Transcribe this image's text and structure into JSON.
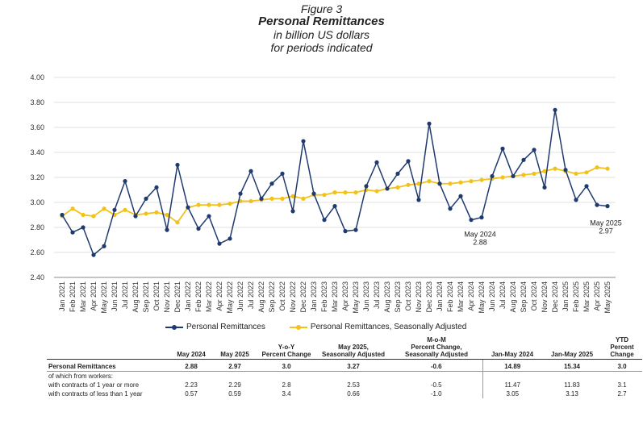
{
  "titles": {
    "figure": "Figure 3",
    "title": "Personal Remittances",
    "subtitle1": "in billion US dollars",
    "subtitle2": "for periods indicated"
  },
  "colors": {
    "series1": "#1f3a6e",
    "series2": "#f2c21b"
  },
  "chart_data": {
    "type": "line",
    "ylim": [
      2.4,
      4.0
    ],
    "yticks": [
      "4.00",
      "3.80",
      "3.60",
      "3.40",
      "3.20",
      "3.00",
      "2.80",
      "2.60",
      "2.40"
    ],
    "grid": true,
    "legend_position": "bottom",
    "categories": [
      "Jan 2021",
      "Feb 2021",
      "Mar 2021",
      "Apr 2021",
      "May 2021",
      "Jun 2021",
      "Jul 2021",
      "Aug 2021",
      "Sep 2021",
      "Oct 2021",
      "Nov 2021",
      "Dec 2021",
      "Jan 2022",
      "Feb 2022",
      "Mar 2022",
      "Apr 2022",
      "May 2022",
      "Jun 2022",
      "Jul 2022",
      "Aug 2022",
      "Sep 2022",
      "Oct 2022",
      "Nov 2022",
      "Dec 2022",
      "Jan 2023",
      "Feb 2023",
      "Mar 2023",
      "Apr 2023",
      "May 2023",
      "Jun 2023",
      "Jul 2023",
      "Aug 2023",
      "Sep 2023",
      "Oct 2023",
      "Nov 2023",
      "Dec 2023",
      "Jan 2024",
      "Feb 2024",
      "Mar 2024",
      "Apr 2024",
      "May 2024",
      "Jun 2024",
      "Jul 2024",
      "Aug 2024",
      "Sep 2024",
      "Oct 2024",
      "Nov 2024",
      "Dec 2024",
      "Jan 2025",
      "Feb 2025",
      "Mar 2025",
      "Apr 2025",
      "May 2025"
    ],
    "series": [
      {
        "name": "Personal Remittances",
        "values": [
          2.9,
          2.76,
          2.8,
          2.58,
          2.65,
          2.94,
          3.17,
          2.89,
          3.03,
          3.12,
          2.78,
          3.3,
          2.96,
          2.79,
          2.89,
          2.67,
          2.71,
          3.07,
          3.25,
          3.03,
          3.15,
          3.23,
          2.93,
          3.49,
          3.07,
          2.86,
          2.97,
          2.77,
          2.78,
          3.13,
          3.32,
          3.11,
          3.23,
          3.33,
          3.02,
          3.63,
          3.15,
          2.95,
          3.05,
          2.86,
          2.88,
          3.21,
          3.43,
          3.21,
          3.34,
          3.42,
          3.12,
          3.74,
          3.26,
          3.02,
          3.13,
          2.98,
          2.97
        ]
      },
      {
        "name": "Personal Remittances, Seasonally Adjusted",
        "values": [
          2.89,
          2.95,
          2.9,
          2.89,
          2.95,
          2.9,
          2.94,
          2.9,
          2.91,
          2.92,
          2.9,
          2.84,
          2.96,
          2.98,
          2.98,
          2.98,
          2.99,
          3.01,
          3.01,
          3.02,
          3.03,
          3.03,
          3.05,
          3.03,
          3.06,
          3.06,
          3.08,
          3.08,
          3.08,
          3.1,
          3.09,
          3.11,
          3.12,
          3.14,
          3.15,
          3.17,
          3.15,
          3.15,
          3.16,
          3.17,
          3.18,
          3.19,
          3.2,
          3.21,
          3.22,
          3.23,
          3.25,
          3.27,
          3.25,
          3.23,
          3.24,
          3.28,
          3.27
        ]
      }
    ],
    "annotations": [
      {
        "index": 40,
        "line1": "May 2024",
        "line2": "2.88"
      },
      {
        "index": 52,
        "line1": "May 2025",
        "line2": "2.97"
      }
    ]
  },
  "table": {
    "headers": [
      "",
      "May 2024",
      "May 2025",
      "Y-o-Y\nPercent Change",
      "May 2025,\nSeasonally Adjusted",
      "M-o-M\nPercent Change,\nSeasonally Adjusted",
      "Jan-May 2024",
      "Jan-May 2025",
      "YTD\nPercent\nChange"
    ],
    "rows": [
      [
        "Personal Remittances",
        "2.88",
        "2.97",
        "3.0",
        "3.27",
        "-0.6",
        "14.89",
        "15.34",
        "3.0"
      ],
      [
        "of which from workers:",
        "",
        "",
        "",
        "",
        "",
        "",
        "",
        ""
      ],
      [
        "with contracts of 1 year or more",
        "2.23",
        "2.29",
        "2.8",
        "2.53",
        "-0.5",
        "11.47",
        "11.83",
        "3.1"
      ],
      [
        "with contracts of less than 1 year",
        "0.57",
        "0.59",
        "3.4",
        "0.66",
        "-1.0",
        "3.05",
        "3.13",
        "2.7"
      ]
    ]
  }
}
